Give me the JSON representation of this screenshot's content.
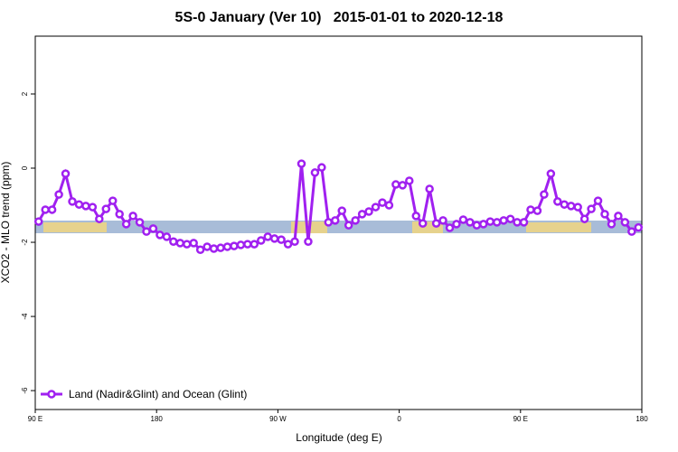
{
  "chart_data": {
    "type": "line",
    "title": "5S-0 January (Ver 10)   2015-01-01 to 2020-12-18",
    "x_label": "Longitude (deg E)",
    "y_label": "XCO2 - MLO trend (ppm)",
    "xlim": [
      90,
      540
    ],
    "ylim": [
      -6.51,
      3.56
    ],
    "xticks": [
      {
        "value": 90,
        "label": "90 E"
      },
      180,
      {
        "value": 270,
        "label": "90 W"
      },
      {
        "value": 360,
        "label": "0"
      },
      {
        "value": 450,
        "label": "90 E"
      },
      {
        "value": 540,
        "label": "180"
      }
    ],
    "yticks": [
      -6,
      -4,
      -2,
      0,
      2
    ],
    "legend": "bottom-left",
    "x": [
      92.5,
      97.5,
      102.5,
      107.5,
      112.5,
      117.5,
      122.5,
      127.5,
      132.5,
      137.5,
      142.5,
      147.5,
      152.5,
      157.5,
      162.5,
      167.5,
      172.5,
      177.5,
      182.5,
      187.5,
      192.5,
      197.5,
      202.5,
      207.5,
      212.5,
      217.5,
      222.5,
      227.5,
      232.5,
      237.5,
      242.5,
      247.5,
      252.5,
      257.5,
      262.5,
      267.5,
      272.5,
      277.5,
      282.5,
      287.5,
      292.5,
      297.5,
      302.5,
      307.5,
      312.5,
      317.5,
      322.5,
      327.5,
      332.5,
      337.5,
      342.5,
      347.5,
      352.5,
      357.5,
      362.5,
      367.5,
      372.5,
      377.5,
      382.5,
      387.5,
      392.5,
      397.5,
      402.5,
      407.5,
      412.5,
      417.5,
      422.5,
      427.5,
      432.5,
      437.5,
      442.5,
      447.5,
      452.5,
      457.5,
      462.5,
      467.5,
      472.5,
      477.5,
      482.5,
      487.5,
      492.5,
      497.5,
      502.5,
      507.5,
      512.5,
      517.5,
      522.5,
      527.5,
      532.5,
      537.5
    ],
    "series": [
      {
        "name": "Land (Nadir&Glint) and Ocean (Glint)",
        "color": "#a020f0",
        "values": [
          -1.44,
          -1.12,
          -1.12,
          -0.71,
          -0.15,
          -0.9,
          -0.98,
          -1.02,
          -1.05,
          -1.37,
          -1.1,
          -0.88,
          -1.24,
          -1.51,
          -1.29,
          -1.46,
          -1.71,
          -1.63,
          -1.8,
          -1.85,
          -1.98,
          -2.02,
          -2.05,
          -2.02,
          -2.2,
          -2.12,
          -2.17,
          -2.15,
          -2.12,
          -2.1,
          -2.07,
          -2.05,
          -2.05,
          -1.95,
          -1.85,
          -1.9,
          -1.93,
          -2.05,
          -1.98,
          0.12,
          -1.98,
          -0.12,
          0.02,
          -1.46,
          -1.41,
          -1.15,
          -1.54,
          -1.41,
          -1.24,
          -1.17,
          -1.05,
          -0.93,
          -1.0,
          -0.44,
          -0.46,
          -0.34,
          -1.29,
          -1.49,
          -0.56,
          -1.49,
          -1.41,
          -1.61,
          -1.51,
          -1.39,
          -1.46,
          -1.54,
          -1.51,
          -1.44,
          -1.46,
          -1.41,
          -1.37,
          -1.46,
          -1.46,
          -1.12,
          -1.15,
          -0.71,
          -0.15,
          -0.9,
          -0.98,
          -1.02,
          -1.05,
          -1.37,
          -1.1,
          -0.88,
          -1.24,
          -1.51,
          -1.29,
          -1.46,
          -1.71,
          -1.6
        ]
      }
    ]
  }
}
